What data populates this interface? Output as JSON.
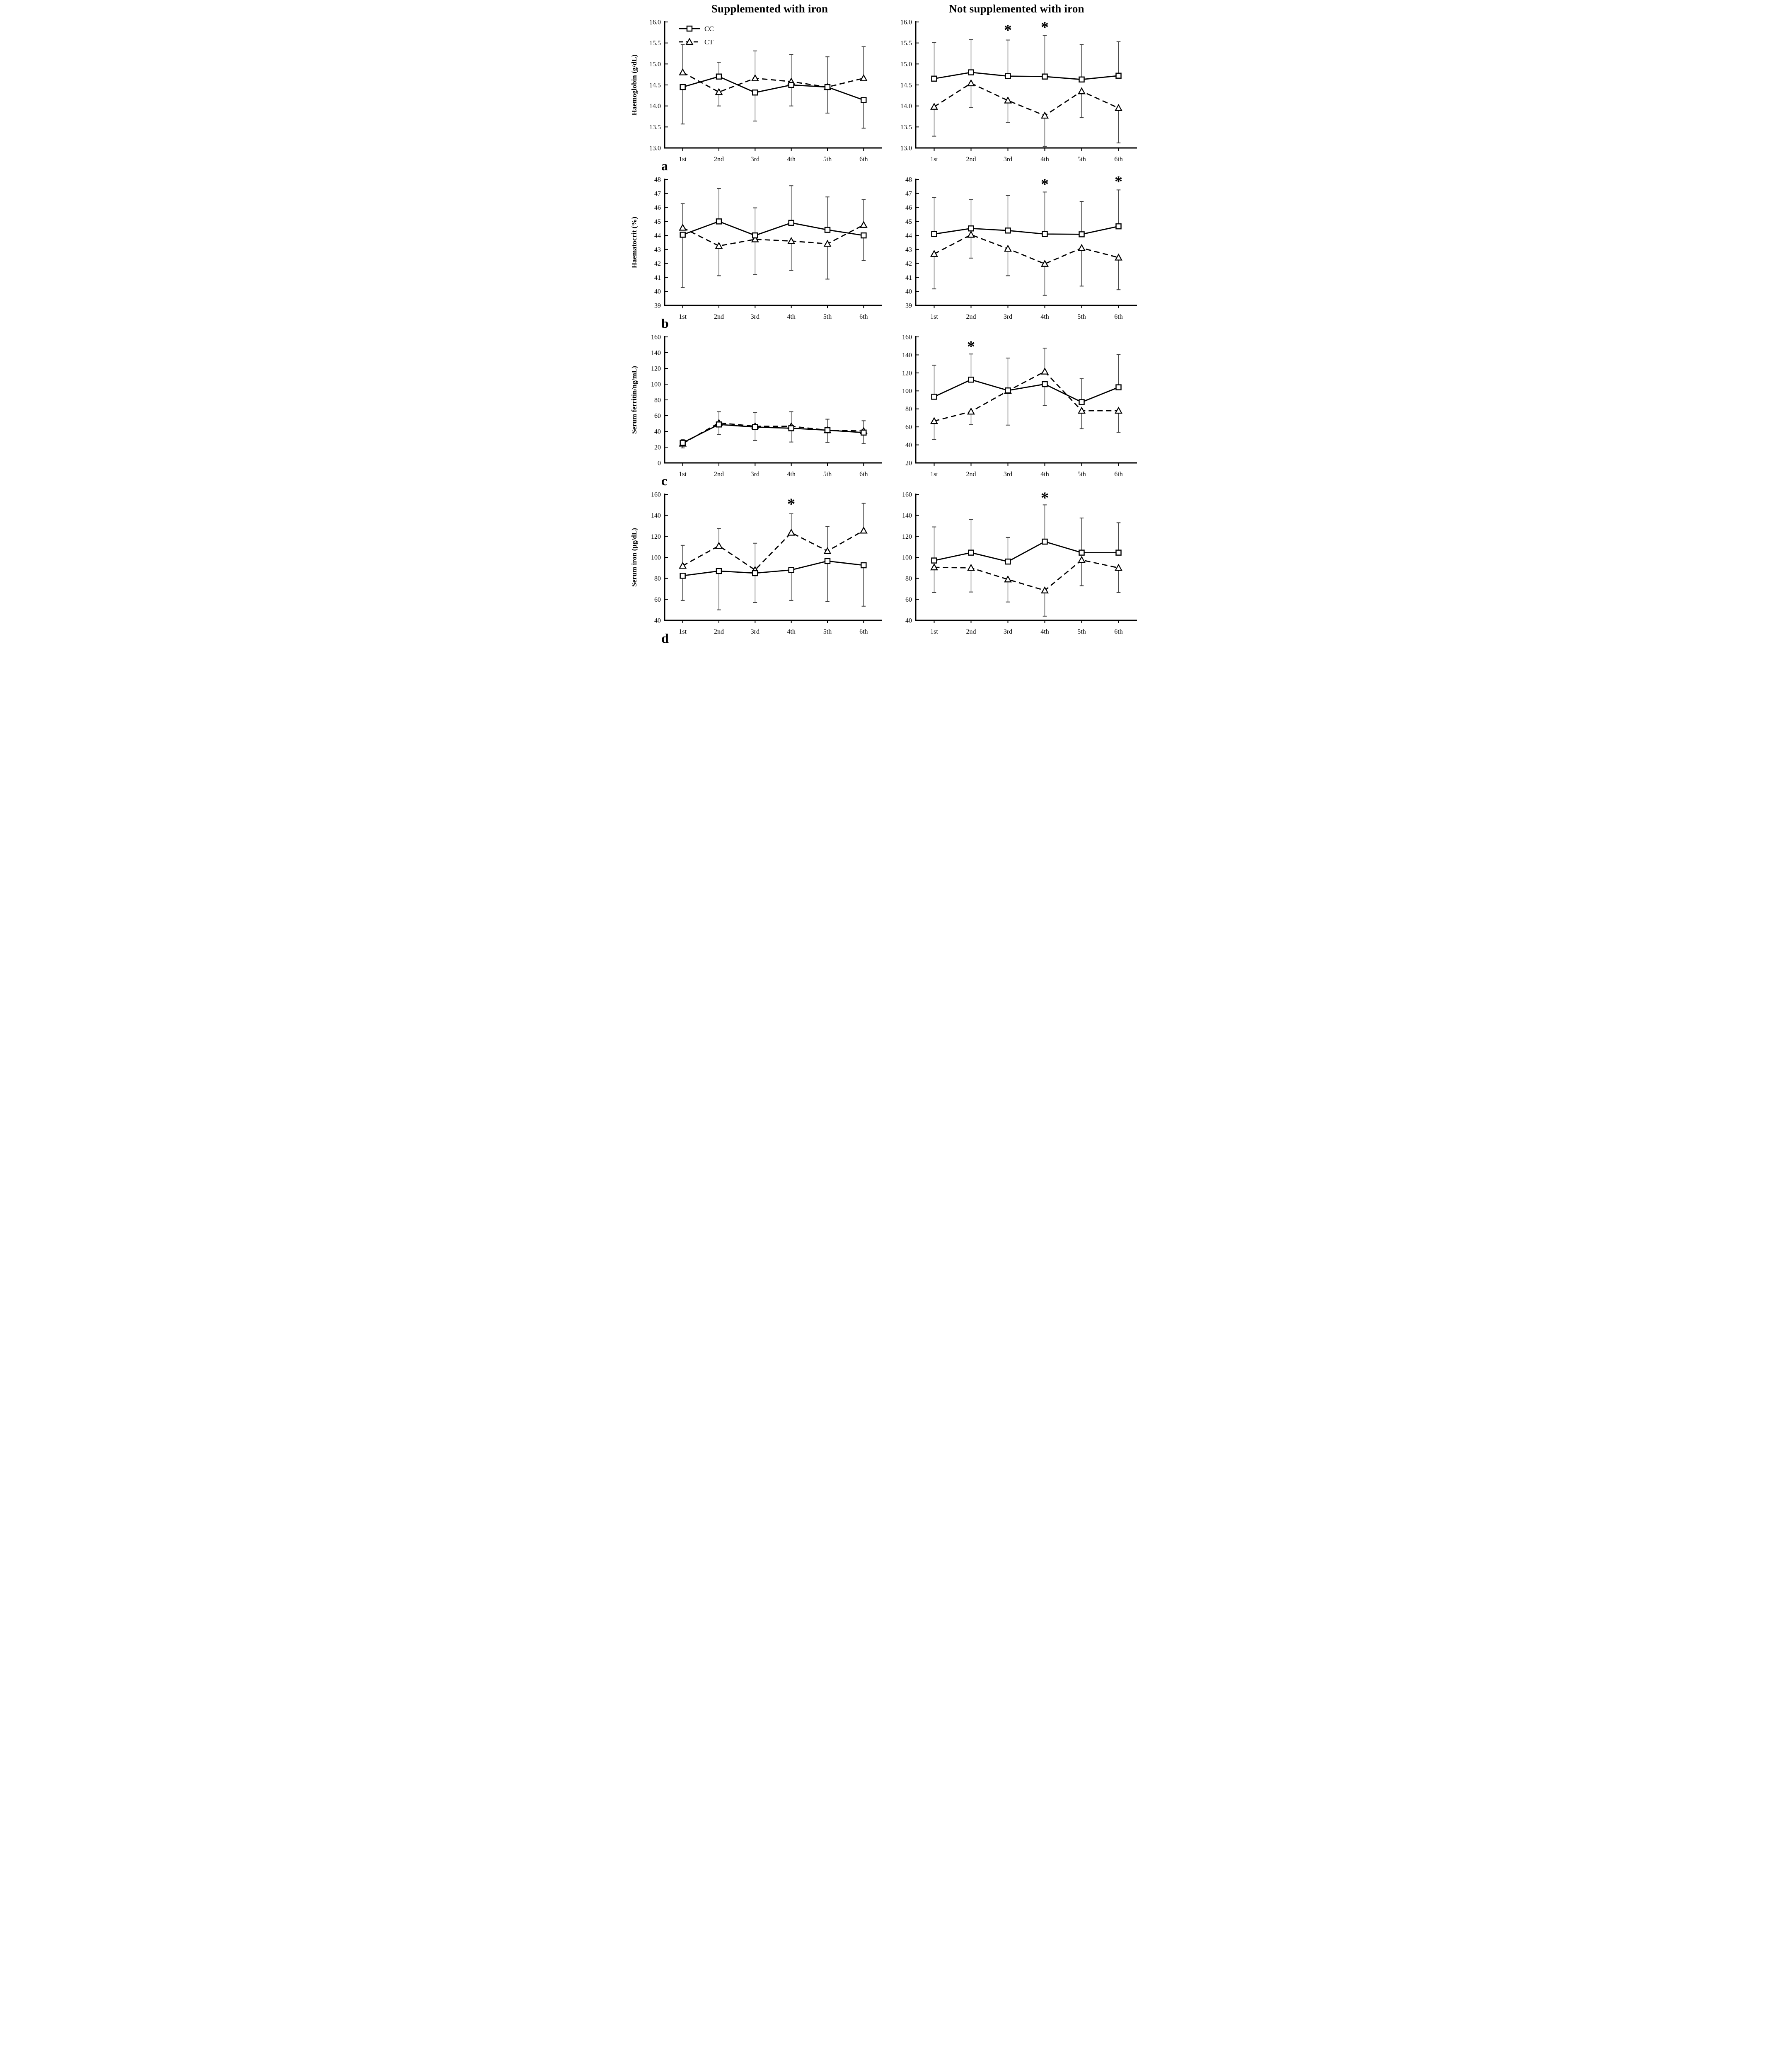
{
  "figure": {
    "column_titles": [
      "Supplemented with iron",
      "Not supplemented with iron"
    ],
    "legend": {
      "cc_label": "CC",
      "ct_label": "CT"
    },
    "significance_marker": "*",
    "x_categories": [
      "1st",
      "2nd",
      "3rd",
      "4th",
      "5th",
      "6th"
    ],
    "colors": {
      "line": "#000000",
      "marker_fill": "#ffffff",
      "error_bar": "#404040",
      "background": "#ffffff",
      "text": "#000000"
    }
  },
  "chart_data": [
    {
      "name": "haemoglobin-supplemented",
      "type": "line",
      "panel_label": "a",
      "legend": true,
      "title_column": "Supplemented with iron",
      "ylabel": "Haemoglobin (g/dL)",
      "ylim": [
        13.0,
        16.0
      ],
      "ystep": 0.5,
      "ytick_decimals": 1,
      "series": [
        {
          "name": "CC",
          "style": "solid",
          "marker": "square",
          "values": [
            14.45,
            14.7,
            14.32,
            14.5,
            14.45,
            14.14
          ],
          "err_up": [
            0,
            0.34,
            0,
            0,
            0.72,
            0
          ],
          "err_down": [
            0.88,
            0,
            0.68,
            0.5,
            0,
            0.67
          ]
        },
        {
          "name": "CT",
          "style": "dashed",
          "marker": "triangle",
          "values": [
            14.8,
            14.33,
            14.66,
            14.58,
            14.45,
            14.66
          ],
          "err_up": [
            0.66,
            0,
            0.65,
            0.65,
            0,
            0.75
          ],
          "err_down": [
            0,
            0.33,
            0,
            0,
            0.62,
            0
          ]
        }
      ],
      "asterisks": []
    },
    {
      "name": "haemoglobin-not-supplemented",
      "type": "line",
      "panel_label": "",
      "legend": false,
      "title_column": "Not supplemented with iron",
      "ylabel": "",
      "ylim": [
        13.0,
        16.0
      ],
      "ystep": 0.5,
      "ytick_decimals": 1,
      "series": [
        {
          "name": "CC",
          "style": "solid",
          "marker": "square",
          "values": [
            14.65,
            14.8,
            14.71,
            14.7,
            14.63,
            14.72
          ],
          "err_up": [
            0.86,
            0.78,
            0.86,
            0.98,
            0.83,
            0.81
          ],
          "err_down": [
            0,
            0,
            0,
            0,
            0,
            0
          ]
        },
        {
          "name": "CT",
          "style": "dashed",
          "marker": "triangle",
          "values": [
            13.98,
            14.54,
            14.13,
            13.77,
            14.35,
            13.95
          ],
          "err_up": [
            0,
            0,
            0,
            0,
            0,
            0
          ],
          "err_down": [
            0.7,
            0.58,
            0.52,
            0.73,
            0.63,
            0.83
          ]
        }
      ],
      "asterisks": [
        {
          "x_index": 2,
          "y": 15.82
        },
        {
          "x_index": 3,
          "y": 15.89
        }
      ]
    },
    {
      "name": "haematocrit-supplemented",
      "type": "line",
      "panel_label": "b",
      "legend": false,
      "title_column": "Supplemented with iron",
      "ylabel": "Haematocrit (%)",
      "ylim": [
        39,
        48
      ],
      "ystep": 1,
      "ytick_decimals": 0,
      "series": [
        {
          "name": "CC",
          "style": "solid",
          "marker": "square",
          "values": [
            44.05,
            45.0,
            44.0,
            44.9,
            44.4,
            44.0
          ],
          "err_up": [
            0,
            2.35,
            1.97,
            2.65,
            2.35,
            0
          ],
          "err_down": [
            3.77,
            0,
            0,
            0,
            0,
            1.8
          ]
        },
        {
          "name": "CT",
          "style": "dashed",
          "marker": "triangle",
          "values": [
            44.55,
            43.25,
            43.72,
            43.6,
            43.4,
            44.75
          ],
          "err_up": [
            1.72,
            0,
            0,
            0,
            0,
            1.8
          ],
          "err_down": [
            0,
            2.13,
            2.52,
            2.1,
            2.52,
            0
          ]
        }
      ],
      "asterisks": []
    },
    {
      "name": "haematocrit-not-supplemented",
      "type": "line",
      "panel_label": "",
      "legend": false,
      "title_column": "Not supplemented with iron",
      "ylabel": "",
      "ylim": [
        39,
        48
      ],
      "ystep": 1,
      "ytick_decimals": 0,
      "series": [
        {
          "name": "CC",
          "style": "solid",
          "marker": "square",
          "values": [
            44.1,
            44.5,
            44.35,
            44.1,
            44.08,
            44.65
          ],
          "err_up": [
            2.6,
            2.05,
            2.5,
            3.0,
            2.35,
            2.6
          ],
          "err_down": [
            0,
            0,
            0,
            0,
            0,
            0
          ]
        },
        {
          "name": "CT",
          "style": "dashed",
          "marker": "triangle",
          "values": [
            42.68,
            44.05,
            43.05,
            41.97,
            43.1,
            42.42
          ],
          "err_up": [
            0,
            0,
            0,
            0,
            0,
            0
          ],
          "err_down": [
            2.5,
            1.67,
            1.93,
            2.25,
            2.72,
            2.3
          ]
        }
      ],
      "asterisks": [
        {
          "x_index": 3,
          "y": 47.7
        },
        {
          "x_index": 5,
          "y": 47.9
        }
      ]
    },
    {
      "name": "serum-ferritin-supplemented",
      "type": "line",
      "panel_label": "c",
      "legend": false,
      "title_column": "Supplemented with iron",
      "ylabel": "Serum ferritin/ng/mL)",
      "ylim": [
        0,
        160
      ],
      "ystep": 20,
      "ytick_decimals": 0,
      "series": [
        {
          "name": "CC",
          "style": "solid",
          "marker": "square",
          "values": [
            25.5,
            48.8,
            45.5,
            44.0,
            41.5,
            38.5
          ],
          "err_up": [
            4,
            0,
            0,
            0,
            0,
            0
          ],
          "err_down": [
            0,
            12.8,
            17,
            17.5,
            15.5,
            14
          ]
        },
        {
          "name": "CT",
          "style": "dashed",
          "marker": "triangle",
          "values": [
            24.5,
            50.8,
            46.5,
            46.5,
            41.5,
            40.5
          ],
          "err_up": [
            0,
            14.2,
            17.5,
            18.5,
            14,
            13
          ],
          "err_down": [
            5.5,
            0,
            0,
            0,
            0,
            0
          ]
        }
      ],
      "asterisks": []
    },
    {
      "name": "serum-ferritin-not-supplemented",
      "type": "line",
      "panel_label": "",
      "legend": false,
      "title_column": "Not supplemented with iron",
      "ylabel": "",
      "ylim": [
        20,
        160
      ],
      "ystep": 20,
      "ytick_decimals": 0,
      "series": [
        {
          "name": "CC",
          "style": "solid",
          "marker": "square",
          "values": [
            93.5,
            112.5,
            100.5,
            107.5,
            87.5,
            104
          ],
          "err_up": [
            35,
            28.5,
            0,
            0,
            26,
            36.5
          ],
          "err_down": [
            0,
            0,
            38.5,
            23.5,
            0,
            0
          ]
        },
        {
          "name": "CT",
          "style": "dashed",
          "marker": "triangle",
          "values": [
            66.5,
            77,
            100,
            121.5,
            78,
            78
          ],
          "err_up": [
            0,
            0,
            36.5,
            26,
            0,
            0
          ],
          "err_down": [
            20.5,
            14.5,
            0,
            0,
            20,
            24
          ]
        }
      ],
      "asterisks": [
        {
          "x_index": 1,
          "y": 150
        }
      ]
    },
    {
      "name": "serum-iron-supplemented",
      "type": "line",
      "panel_label": "d",
      "legend": false,
      "title_column": "Supplemented with iron",
      "ylabel": "Serum iron (µg/dL)",
      "ylim": [
        40,
        160
      ],
      "ystep": 20,
      "ytick_decimals": 0,
      "series": [
        {
          "name": "CC",
          "style": "solid",
          "marker": "square",
          "values": [
            82.5,
            87,
            85,
            88,
            96.5,
            92.5
          ],
          "err_up": [
            0,
            0,
            0,
            0,
            0,
            0
          ],
          "err_down": [
            23.5,
            37,
            28,
            29,
            38.5,
            39
          ]
        },
        {
          "name": "CT",
          "style": "dashed",
          "marker": "triangle",
          "values": [
            92,
            111,
            88,
            123.5,
            106,
            125.5
          ],
          "err_up": [
            19.5,
            16.5,
            25.5,
            18,
            23.5,
            26
          ],
          "err_down": [
            0,
            0,
            0,
            0,
            0,
            0
          ]
        }
      ],
      "asterisks": [
        {
          "x_index": 3,
          "y": 151.5
        }
      ]
    },
    {
      "name": "serum-iron-not-supplemented",
      "type": "line",
      "panel_label": "",
      "legend": false,
      "title_column": "Not supplemented with iron",
      "ylabel": "",
      "ylim": [
        40,
        160
      ],
      "ystep": 20,
      "ytick_decimals": 0,
      "series": [
        {
          "name": "CC",
          "style": "solid",
          "marker": "square",
          "values": [
            97,
            104.5,
            96,
            115,
            104.5,
            104.5
          ],
          "err_up": [
            32,
            31.5,
            23,
            35,
            33,
            28.5
          ],
          "err_down": [
            0,
            0,
            0,
            0,
            0,
            0
          ]
        },
        {
          "name": "CT",
          "style": "dashed",
          "marker": "triangle",
          "values": [
            90.5,
            90,
            79,
            68.5,
            97.5,
            90
          ],
          "err_up": [
            0,
            0,
            0,
            0,
            0,
            0
          ],
          "err_down": [
            24,
            23,
            21.5,
            24.5,
            24.5,
            23.5
          ]
        }
      ],
      "asterisks": [
        {
          "x_index": 3,
          "y": 157.5
        }
      ]
    }
  ]
}
